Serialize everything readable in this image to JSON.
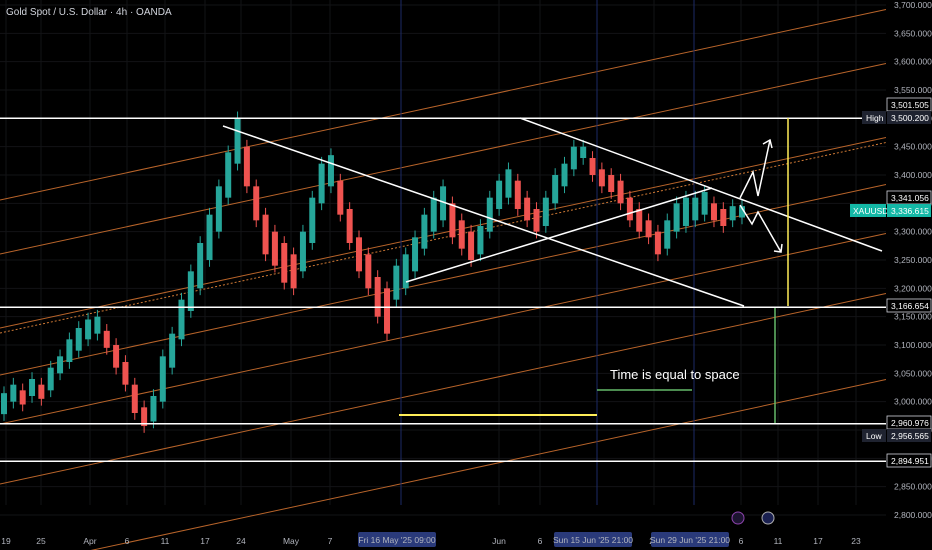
{
  "header": {
    "title": "Gold Spot / U.S. Dollar · 4h · OANDA"
  },
  "chart_data": {
    "type": "candlestick",
    "symbol": "XAUUSD",
    "ylim": [
      2770,
      3720
    ],
    "y_ticks": [
      2800,
      2850,
      2900,
      2950,
      3000,
      3050,
      3100,
      3150,
      3200,
      3250,
      3300,
      3350,
      3400,
      3450,
      3500,
      3550,
      3600,
      3650,
      3700
    ],
    "x_ticks": [
      "19",
      "25",
      "Apr",
      "6",
      "11",
      "17",
      "24",
      "May",
      "7",
      "Jun",
      "6",
      "29",
      "6",
      "11",
      "17",
      "23"
    ],
    "date_badges": [
      "Fri 16 May '25 09:00",
      "Sun 15 Jun '25 21:00",
      "Sun 29 Jun '25 21:00"
    ],
    "price_tags": [
      {
        "label": "",
        "value": "3,501.505",
        "style": "outline"
      },
      {
        "label": "High",
        "value": "3,500.200",
        "style": "dark"
      },
      {
        "label": "",
        "value": "3,341.056",
        "style": "outline"
      },
      {
        "label": "XAUUSD",
        "value": "3,336.615",
        "style": "green"
      },
      {
        "label": "",
        "value": "3,166.654",
        "style": "outline"
      },
      {
        "label": "",
        "value": "2,960.976",
        "style": "outline"
      },
      {
        "label": "Low",
        "value": "2,956.565",
        "style": "dark"
      },
      {
        "label": "",
        "value": "2,894.951",
        "style": "outline"
      }
    ],
    "price_path": [
      [
        2978,
        3015
      ],
      [
        3000,
        3030
      ],
      [
        2995,
        3020
      ],
      [
        3010,
        3040
      ],
      [
        3005,
        3030
      ],
      [
        3020,
        3060
      ],
      [
        3050,
        3080
      ],
      [
        3070,
        3110
      ],
      [
        3090,
        3130
      ],
      [
        3110,
        3145
      ],
      [
        3120,
        3150
      ],
      [
        3095,
        3125
      ],
      [
        3060,
        3100
      ],
      [
        3030,
        3070
      ],
      [
        2980,
        3030
      ],
      [
        2957,
        2990
      ],
      [
        2965,
        3010
      ],
      [
        3000,
        3080
      ],
      [
        3060,
        3120
      ],
      [
        3110,
        3180
      ],
      [
        3160,
        3230
      ],
      [
        3200,
        3280
      ],
      [
        3250,
        3330
      ],
      [
        3300,
        3380
      ],
      [
        3360,
        3440
      ],
      [
        3420,
        3500
      ],
      [
        3380,
        3450
      ],
      [
        3320,
        3380
      ],
      [
        3260,
        3330
      ],
      [
        3240,
        3300
      ],
      [
        3210,
        3280
      ],
      [
        3200,
        3260
      ],
      [
        3230,
        3300
      ],
      [
        3280,
        3360
      ],
      [
        3350,
        3420
      ],
      [
        3380,
        3435
      ],
      [
        3330,
        3390
      ],
      [
        3280,
        3340
      ],
      [
        3230,
        3290
      ],
      [
        3200,
        3260
      ],
      [
        3150,
        3220
      ],
      [
        3120,
        3200
      ],
      [
        3180,
        3240
      ],
      [
        3200,
        3260
      ],
      [
        3230,
        3290
      ],
      [
        3270,
        3330
      ],
      [
        3300,
        3360
      ],
      [
        3320,
        3380
      ],
      [
        3290,
        3350
      ],
      [
        3270,
        3320
      ],
      [
        3250,
        3300
      ],
      [
        3260,
        3310
      ],
      [
        3300,
        3360
      ],
      [
        3340,
        3390
      ],
      [
        3360,
        3410
      ],
      [
        3340,
        3390
      ],
      [
        3320,
        3360
      ],
      [
        3300,
        3340
      ],
      [
        3310,
        3360
      ],
      [
        3350,
        3400
      ],
      [
        3380,
        3420
      ],
      [
        3410,
        3450
      ],
      [
        3430,
        3450
      ],
      [
        3400,
        3430
      ],
      [
        3380,
        3410
      ],
      [
        3370,
        3400
      ],
      [
        3350,
        3390
      ],
      [
        3320,
        3360
      ],
      [
        3300,
        3340
      ],
      [
        3290,
        3320
      ],
      [
        3260,
        3300
      ],
      [
        3270,
        3320
      ],
      [
        3300,
        3350
      ],
      [
        3310,
        3360
      ],
      [
        3320,
        3360
      ],
      [
        3330,
        3370
      ],
      [
        3320,
        3350
      ],
      [
        3310,
        3340
      ],
      [
        3320,
        3345
      ],
      [
        3325,
        3345
      ]
    ],
    "annotations": {
      "time_space": "Time is equal to space"
    }
  }
}
